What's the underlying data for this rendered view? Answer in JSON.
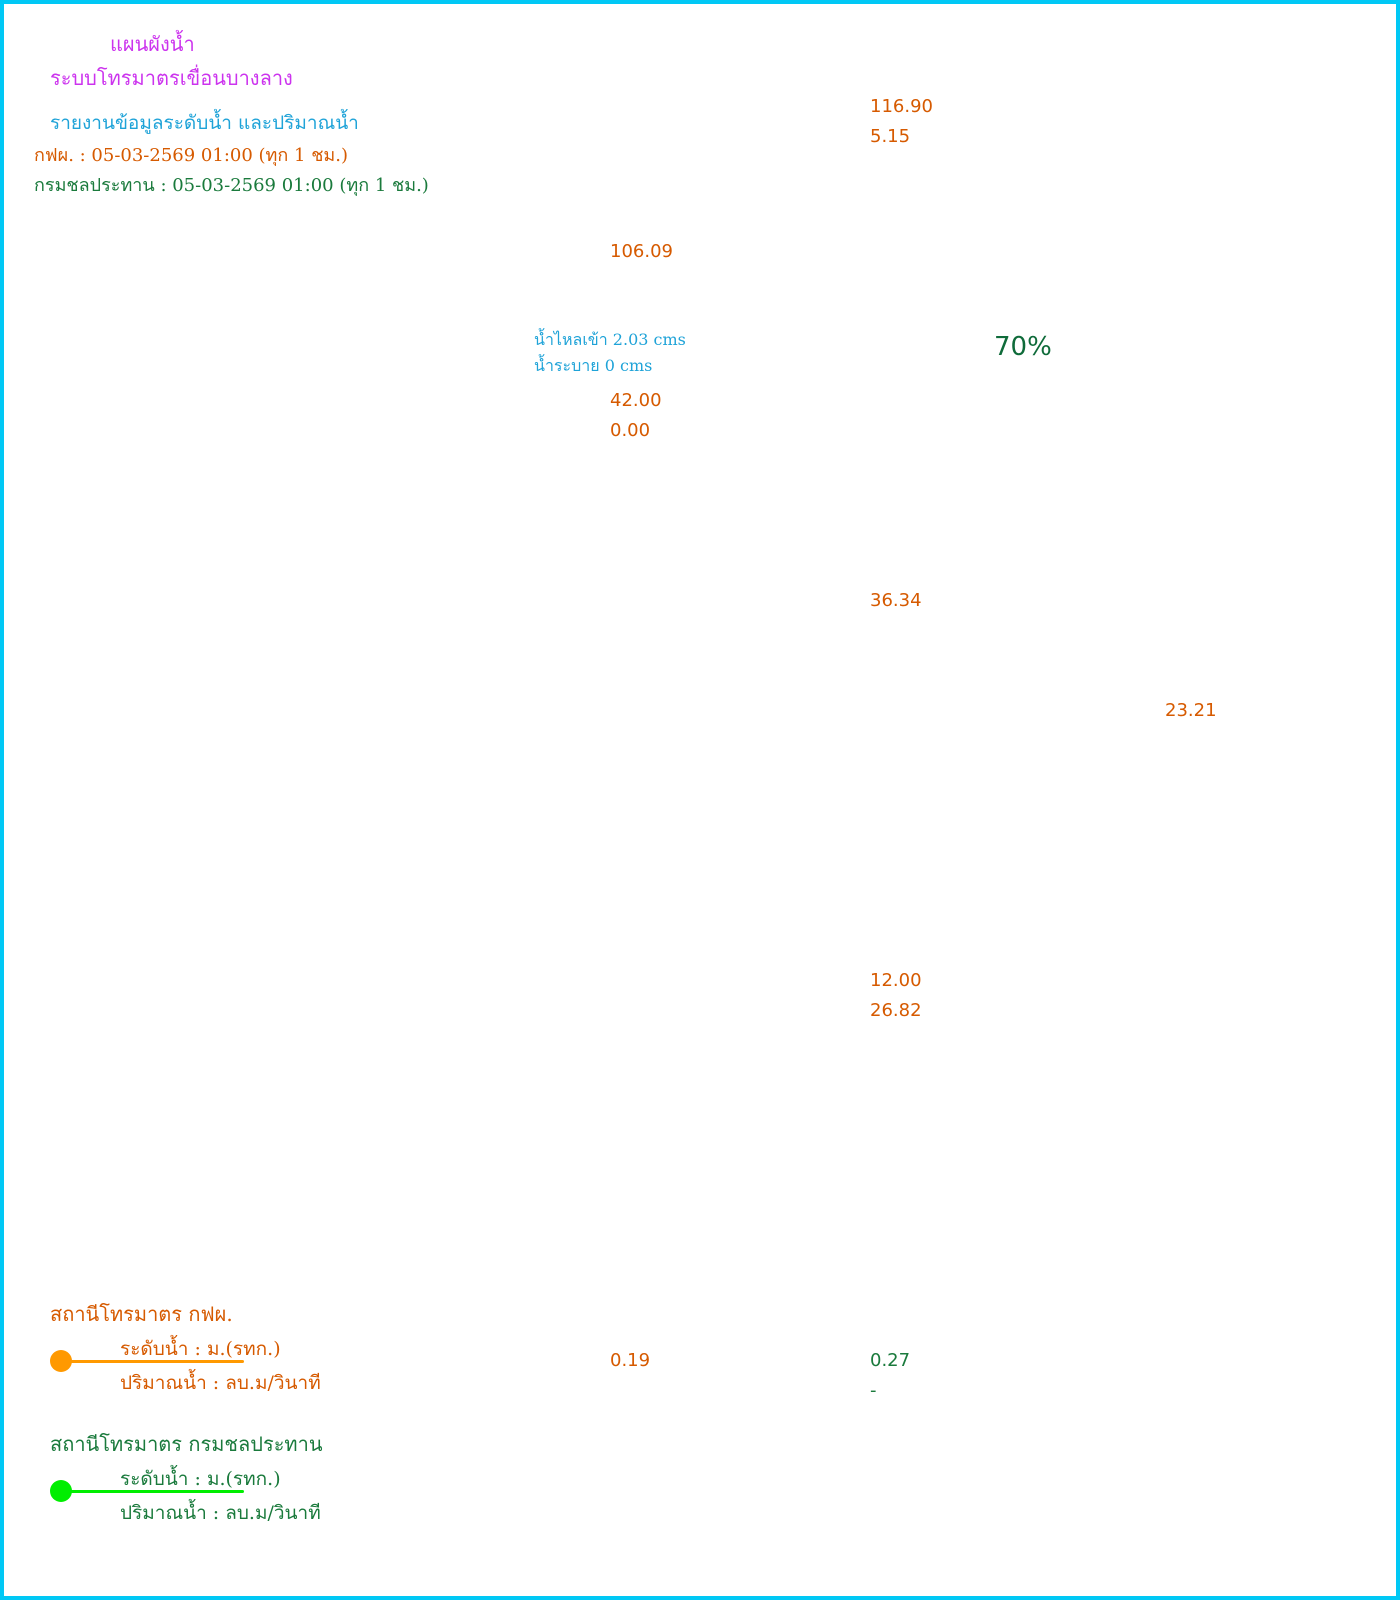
{
  "header": {
    "title": "แผนผังน้ำ",
    "subtitle": "ระบบโทรมาตรเขื่อนบางลาง",
    "report": "รายงานข้อมูลระดับน้ำ และปริมาณน้ำ",
    "egat_time": "กฟผ. : 05-03-2569 01:00 (ทุก 1 ชม.)",
    "rid_time": "กรมชลประทาน : 05-03-2569 01:00 (ทุก 1 ชม.)"
  },
  "readings": {
    "r1_level": "116.90",
    "r1_flow": "5.15",
    "dam_level": "106.09",
    "inflow": "น้ำไหลเข้า 2.03 cms",
    "outflow": "น้ำระบาย 0 cms",
    "dam_a": "42.00",
    "dam_b": "0.00",
    "storage_pct": "70%",
    "r2_level": "36.34",
    "r3_level": "23.21",
    "r4_level": "12.00",
    "r4_flow": "26.82",
    "r5_level": "0.19",
    "r6_level": "0.27",
    "r6_flow": "-"
  },
  "legend": {
    "egat": {
      "title": "สถานีโทรมาตร กฟผ.",
      "level": "ระดับน้ำ : ม.(รทก.)",
      "flow": "ปริมาณน้ำ : ลบ.ม/วินาที",
      "color": "#ff9900"
    },
    "rid": {
      "title": "สถานีโทรมาตร กรมชลประทาน",
      "level": "ระดับน้ำ : ม.(รทก.)",
      "flow": "ปริมาณน้ำ : ลบ.ม/วินาที",
      "color": "#00ee00"
    }
  },
  "colors": {
    "border": "#00c8f5",
    "title": "#cc33ee",
    "report": "#1fa3d8",
    "egat_text": "#d65a00",
    "rid_text": "#1a7a3c",
    "pct": "#0f6b3a"
  }
}
